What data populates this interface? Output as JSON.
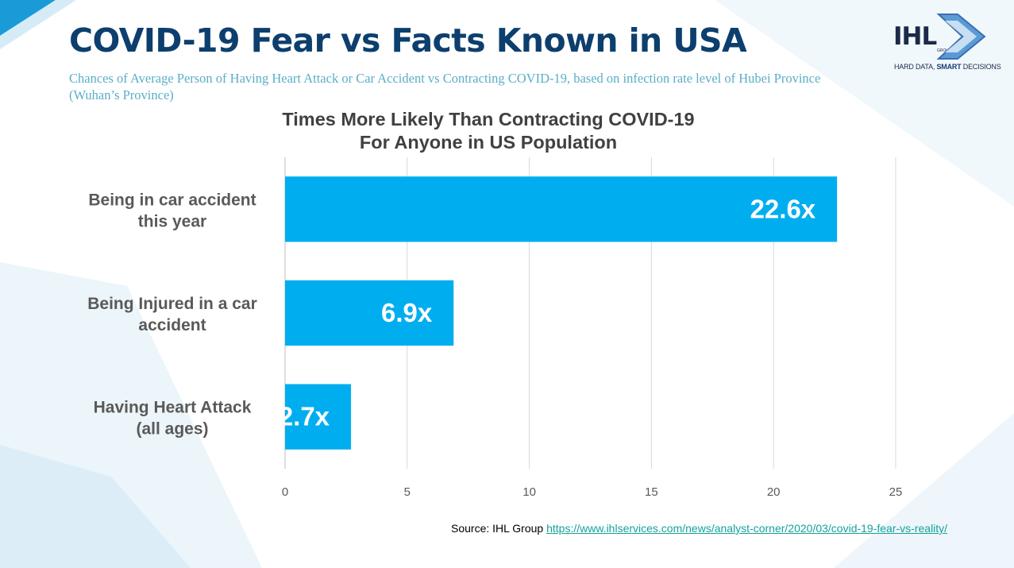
{
  "slide": {
    "title": "COVID-19 Fear vs Facts Known in USA",
    "subtitle": "Chances of Average Person of Having Heart Attack or Car Accident vs Contracting COVID-19, based on infection rate level of Hubei Province (Wuhan’s Province)"
  },
  "logo": {
    "wordmark": "IHL",
    "group_text": "GROUP",
    "tagline_plain": "HARD DATA, ",
    "tagline_bold": "SMART",
    "tagline_end": " DECISIONS"
  },
  "chart_data": {
    "type": "bar",
    "orientation": "horizontal",
    "title": "Times More Likely Than Contracting COVID-19",
    "subtitle": "For Anyone in US Population",
    "categories": [
      [
        "Being in car accident",
        "this year"
      ],
      [
        "Being Injured in a car",
        "accident"
      ],
      [
        "Having Heart Attack",
        "(all ages)"
      ]
    ],
    "values": [
      22.6,
      6.9,
      2.7
    ],
    "data_labels": [
      "22.6x",
      "6.9x",
      "2.7x"
    ],
    "xlim": [
      0,
      25
    ],
    "x_ticks": [
      0,
      5,
      10,
      15,
      20,
      25
    ],
    "grid": true,
    "legend": "none",
    "bar_color": "#00aeef",
    "grid_color": "#d9d9d9"
  },
  "source": {
    "prefix": "Source: IHL Group ",
    "url": "https://www.ihlservices.com/news/analyst-corner/2020/03/covid-19-fear-vs-reality/"
  },
  "colors": {
    "title": "#0d3f6e",
    "subtitle": "#5aaec8",
    "accent": "#00aeef"
  }
}
